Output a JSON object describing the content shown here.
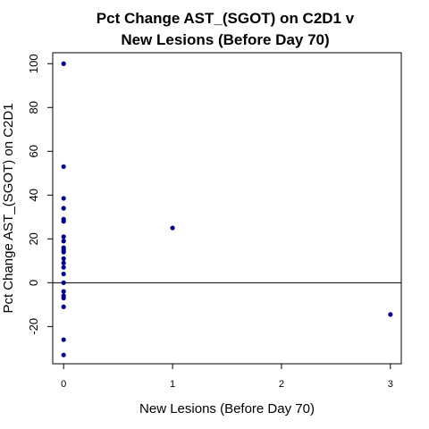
{
  "chart_data": {
    "type": "scatter",
    "title": [
      "Pct Change AST_(SGOT) on C2D1 v",
      "New Lesions (Before Day 70)"
    ],
    "xlabel": "New Lesions (Before Day 70)",
    "ylabel": "Pct Change AST_(SGOT) on C2D1",
    "xlim": [
      -0.1,
      3.1
    ],
    "ylim": [
      -37,
      105
    ],
    "xticks": [
      0,
      1,
      2,
      3
    ],
    "yticks": [
      -20,
      0,
      20,
      40,
      60,
      80,
      100
    ],
    "reference_line_y": 0,
    "point_color": "#00008B",
    "grid": false,
    "points": [
      {
        "x": 0,
        "y": 100
      },
      {
        "x": 0,
        "y": 53
      },
      {
        "x": 0,
        "y": 38.5
      },
      {
        "x": 0,
        "y": 34
      },
      {
        "x": 0,
        "y": 29
      },
      {
        "x": 0,
        "y": 28
      },
      {
        "x": 0,
        "y": 21
      },
      {
        "x": 0,
        "y": 19
      },
      {
        "x": 0,
        "y": 16
      },
      {
        "x": 0,
        "y": 15
      },
      {
        "x": 0,
        "y": 14
      },
      {
        "x": 0,
        "y": 11
      },
      {
        "x": 0,
        "y": 9
      },
      {
        "x": 0,
        "y": 7
      },
      {
        "x": 0,
        "y": 4
      },
      {
        "x": 0,
        "y": 0
      },
      {
        "x": 0,
        "y": -4
      },
      {
        "x": 0,
        "y": -6
      },
      {
        "x": 0,
        "y": -7
      },
      {
        "x": 0,
        "y": -11
      },
      {
        "x": 0,
        "y": -26
      },
      {
        "x": 0,
        "y": -33
      },
      {
        "x": 1,
        "y": 25
      },
      {
        "x": 3,
        "y": -14.5
      }
    ]
  }
}
